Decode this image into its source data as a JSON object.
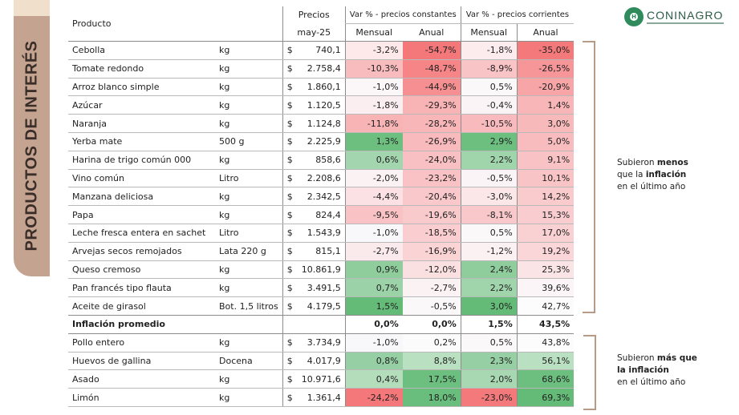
{
  "side_title": "PRODUCTOS DE INTERÉS",
  "logo": {
    "text": "CONINAGRO",
    "icon": "coninagro-logo-icon"
  },
  "table": {
    "headers": {
      "producto": "Producto",
      "precios": "Precios",
      "precios_fecha": "may-25",
      "group_constantes": "Var % - precios constantes",
      "group_corrientes": "Var % - precios corrientes",
      "mensual": "Mensual",
      "anual": "Anual"
    },
    "rows": [
      {
        "producto": "Cebolla",
        "unidad": "kg",
        "moneda": "$",
        "precio": "740,1",
        "const_m": "-3,2%",
        "const_a": "-54,7%",
        "corr_m": "-1,8%",
        "corr_a": "-35,0%",
        "colors": [
          "#fde9ea",
          "#f4777a",
          "#fdeced",
          "#f4797b"
        ]
      },
      {
        "producto": "Tomate redondo",
        "unidad": "kg",
        "moneda": "$",
        "precio": "2.758,4",
        "const_m": "-10,3%",
        "const_a": "-48,7%",
        "corr_m": "-8,9%",
        "corr_a": "-26,5%",
        "colors": [
          "#f8bcbe",
          "#f58587",
          "#f9c4c6",
          "#f69699"
        ]
      },
      {
        "producto": "Arroz blanco simple",
        "unidad": "kg",
        "moneda": "$",
        "precio": "1.860,1",
        "const_m": "-1,0%",
        "const_a": "-44,9%",
        "corr_m": "0,5%",
        "corr_a": "-20,9%",
        "colors": [
          "#fbf6f8",
          "#f68f91",
          "#fbf8fa",
          "#f7a5a7"
        ]
      },
      {
        "producto": "Azúcar",
        "unidad": "kg",
        "moneda": "$",
        "precio": "1.120,5",
        "const_m": "-1,8%",
        "const_a": "-29,3%",
        "corr_m": "-0,4%",
        "corr_a": "1,4%",
        "colors": [
          "#fbeef0",
          "#f8b3b5",
          "#fbf4f6",
          "#f8b6b8"
        ]
      },
      {
        "producto": "Naranja",
        "unidad": "kg",
        "moneda": "$",
        "precio": "1.124,8",
        "const_m": "-11,8%",
        "const_a": "-28,2%",
        "corr_m": "-10,5%",
        "corr_a": "3,0%",
        "colors": [
          "#f8b3b5",
          "#f8b6b8",
          "#f8babc",
          "#f8b9bb"
        ]
      },
      {
        "producto": "Yerba mate",
        "unidad": "500 g",
        "moneda": "$",
        "precio": "2.225,9",
        "const_m": "1,3%",
        "const_a": "-26,9%",
        "corr_m": "2,9%",
        "corr_a": "5,0%",
        "colors": [
          "#6cbf7f",
          "#f8babc",
          "#6cbf7f",
          "#f8bcbe"
        ]
      },
      {
        "producto": "Harina de trigo común 000",
        "unidad": "kg",
        "moneda": "$",
        "precio": "858,6",
        "const_m": "0,6%",
        "const_a": "-24,0%",
        "corr_m": "2,2%",
        "corr_a": "9,1%",
        "colors": [
          "#a3d6ae",
          "#f8c0c2",
          "#a0d4ab",
          "#f9c2c4"
        ]
      },
      {
        "producto": "Vino común",
        "unidad": "Litro",
        "moneda": "$",
        "precio": "2.208,6",
        "const_m": "-2,0%",
        "const_a": "-23,2%",
        "corr_m": "-0,5%",
        "corr_a": "10,1%",
        "colors": [
          "#fbf2f4",
          "#f9c2c4",
          "#fbf4f6",
          "#f9c4c6"
        ]
      },
      {
        "producto": "Manzana deliciosa",
        "unidad": "kg",
        "moneda": "$",
        "precio": "2.342,5",
        "const_m": "-4,4%",
        "const_a": "-20,4%",
        "corr_m": "-3,0%",
        "corr_a": "14,2%",
        "colors": [
          "#fbe1e3",
          "#f9c8ca",
          "#fbe6e8",
          "#f9cbcd"
        ]
      },
      {
        "producto": "Papa",
        "unidad": "kg",
        "moneda": "$",
        "precio": "824,4",
        "const_m": "-9,5%",
        "const_a": "-19,6%",
        "corr_m": "-8,1%",
        "corr_a": "15,3%",
        "colors": [
          "#f9c2c4",
          "#f9cacc",
          "#f9c8ca",
          "#f9cdcf"
        ]
      },
      {
        "producto": "Leche fresca entera en sachet",
        "unidad": "Litro",
        "moneda": "$",
        "precio": "1.543,9",
        "const_m": "-1,0%",
        "const_a": "-18,5%",
        "corr_m": "0,5%",
        "corr_a": "17,0%",
        "colors": [
          "#f8f8fa",
          "#faced0",
          "#fbf8fa",
          "#fad1d3"
        ]
      },
      {
        "producto": "Arvejas secos remojados",
        "unidad": "Lata 220 g",
        "moneda": "$",
        "precio": "815,1",
        "const_m": "-2,7%",
        "const_a": "-16,9%",
        "corr_m": "-1,2%",
        "corr_a": "19,2%",
        "colors": [
          "#fbeaec",
          "#fad3d5",
          "#fbf0f2",
          "#fad6d8"
        ]
      },
      {
        "producto": "Queso cremoso",
        "unidad": "kg",
        "moneda": "$",
        "precio": "10.861,9",
        "const_m": "0,9%",
        "const_a": "-12,0%",
        "corr_m": "2,4%",
        "corr_a": "25,3%",
        "colors": [
          "#8fcd9d",
          "#fbe0e2",
          "#8fcd9d",
          "#fbe4e6"
        ]
      },
      {
        "producto": "Pan francés tipo flauta",
        "unidad": "kg",
        "moneda": "$",
        "precio": "3.491,5",
        "const_m": "0,7%",
        "const_a": "-2,7%",
        "corr_m": "2,2%",
        "corr_a": "39,6%",
        "colors": [
          "#9bd2a8",
          "#fbf2f4",
          "#a0d4ab",
          "#fbf5f7"
        ]
      },
      {
        "producto": "Aceite de girasol",
        "unidad": "Bot. 1,5 litros",
        "moneda": "$",
        "precio": "4.179,5",
        "const_m": "1,5%",
        "const_a": "-0,5%",
        "corr_m": "3,0%",
        "corr_a": "42,7%",
        "colors": [
          "#63bb77",
          "#fbf8fa",
          "#63bb77",
          "#fcfcfd"
        ]
      },
      {
        "producto": "Inflación promedio",
        "unidad": "",
        "moneda": "",
        "precio": "",
        "const_m": "0,0%",
        "const_a": "0,0%",
        "corr_m": "1,5%",
        "corr_a": "43,5%",
        "colors": [
          "#ffffff",
          "#ffffff",
          "#ffffff",
          "#ffffff"
        ],
        "bold": true
      },
      {
        "producto": "Pollo entero",
        "unidad": "kg",
        "moneda": "$",
        "precio": "3.734,9",
        "const_m": "-1,0%",
        "const_a": "0,2%",
        "corr_m": "0,5%",
        "corr_a": "43,8%",
        "colors": [
          "#f8f8fa",
          "#fbfbfc",
          "#fbf8fa",
          "#fcfcfd"
        ]
      },
      {
        "producto": "Huevos de gallina",
        "unidad": "Docena",
        "moneda": "$",
        "precio": "4.017,9",
        "const_m": "0,8%",
        "const_a": "8,8%",
        "corr_m": "2,3%",
        "corr_a": "56,1%",
        "colors": [
          "#95cfa3",
          "#b9e0c1",
          "#95cfa3",
          "#b9e0c1"
        ]
      },
      {
        "producto": "Asado",
        "unidad": "kg",
        "moneda": "$",
        "precio": "10.971,6",
        "const_m": "0,4%",
        "const_a": "17,5%",
        "corr_m": "2,0%",
        "corr_a": "68,6%",
        "colors": [
          "#b4ddbc",
          "#6cbf7f",
          "#a8d8b2",
          "#6cbf7f"
        ]
      },
      {
        "producto": "Limón",
        "unidad": "kg",
        "moneda": "$",
        "precio": "1.361,4",
        "const_m": "-24,2%",
        "const_a": "18,0%",
        "corr_m": "-23,0%",
        "corr_a": "69,3%",
        "colors": [
          "#f4777a",
          "#6abe7d",
          "#f4797b",
          "#63bb77"
        ]
      }
    ]
  },
  "notes": {
    "menos": {
      "pre": "Subieron ",
      "bold1": "menos",
      "line2_pre": "que la ",
      "bold2": "inflación",
      "line3": "en el último año"
    },
    "mas": {
      "pre": "Subieron ",
      "bold1": "más que",
      "bold2": "la inflación",
      "line3": "en el último año"
    }
  }
}
